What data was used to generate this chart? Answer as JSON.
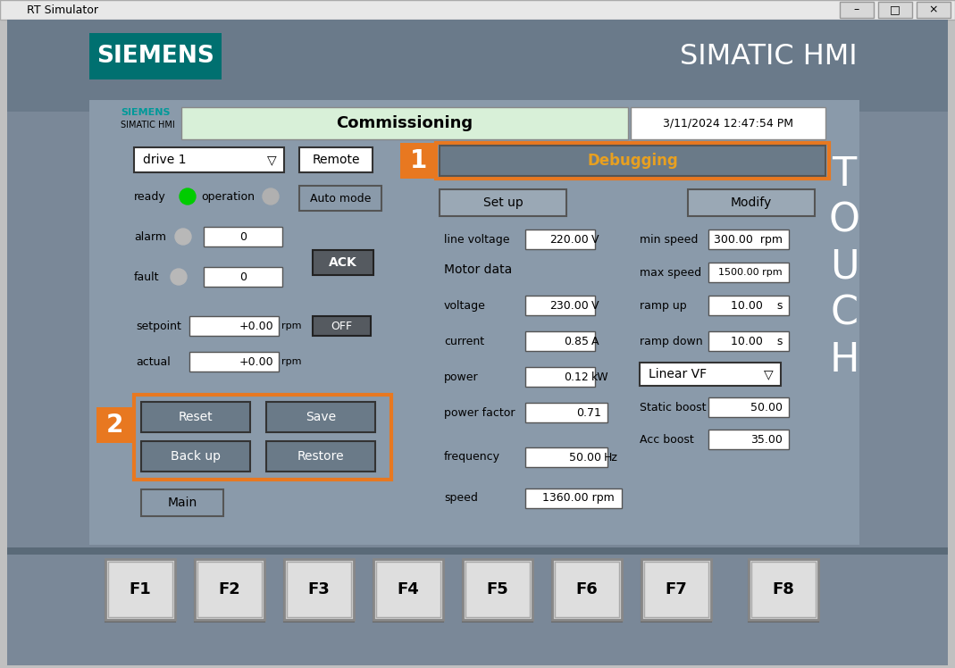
{
  "title_bar_text": "RT Simulator",
  "simatic_hmi_text": "SIMATIC HMI",
  "siemens_text": "SIEMENS",
  "simatic_hmi_small": "SIMATIC HMI",
  "commissioning_text": "Commissioning",
  "datetime_text": "3/11/2024 12:47:54 PM",
  "color_green_light": "#00cc00",
  "color_orange": "#e87820",
  "color_siemens_teal": "#009999",
  "color_commissioning_bg": "#d8f0d8",
  "f_keys": [
    "F1",
    "F2",
    "F3",
    "F4",
    "F5",
    "F6",
    "F7",
    "F8"
  ],
  "alarm_val": "0",
  "fault_val": "0",
  "setpoint_val": "+0.00",
  "actual_val": "+0.00",
  "line_voltage_val": "220.00",
  "motor_voltage_val": "230.00",
  "current_val": "0.85",
  "power_val": "0.12",
  "power_factor_val": "0.71",
  "frequency_val": "50.00",
  "speed_val": "1360.00",
  "min_speed_val": "300.00",
  "max_speed_val": "1500.00",
  "ramp_up_val": "10.00",
  "ramp_down_val": "10.00",
  "static_boost_val": "50.00",
  "acc_boost_val": "35.00",
  "linear_vf_text": "Linear VF"
}
